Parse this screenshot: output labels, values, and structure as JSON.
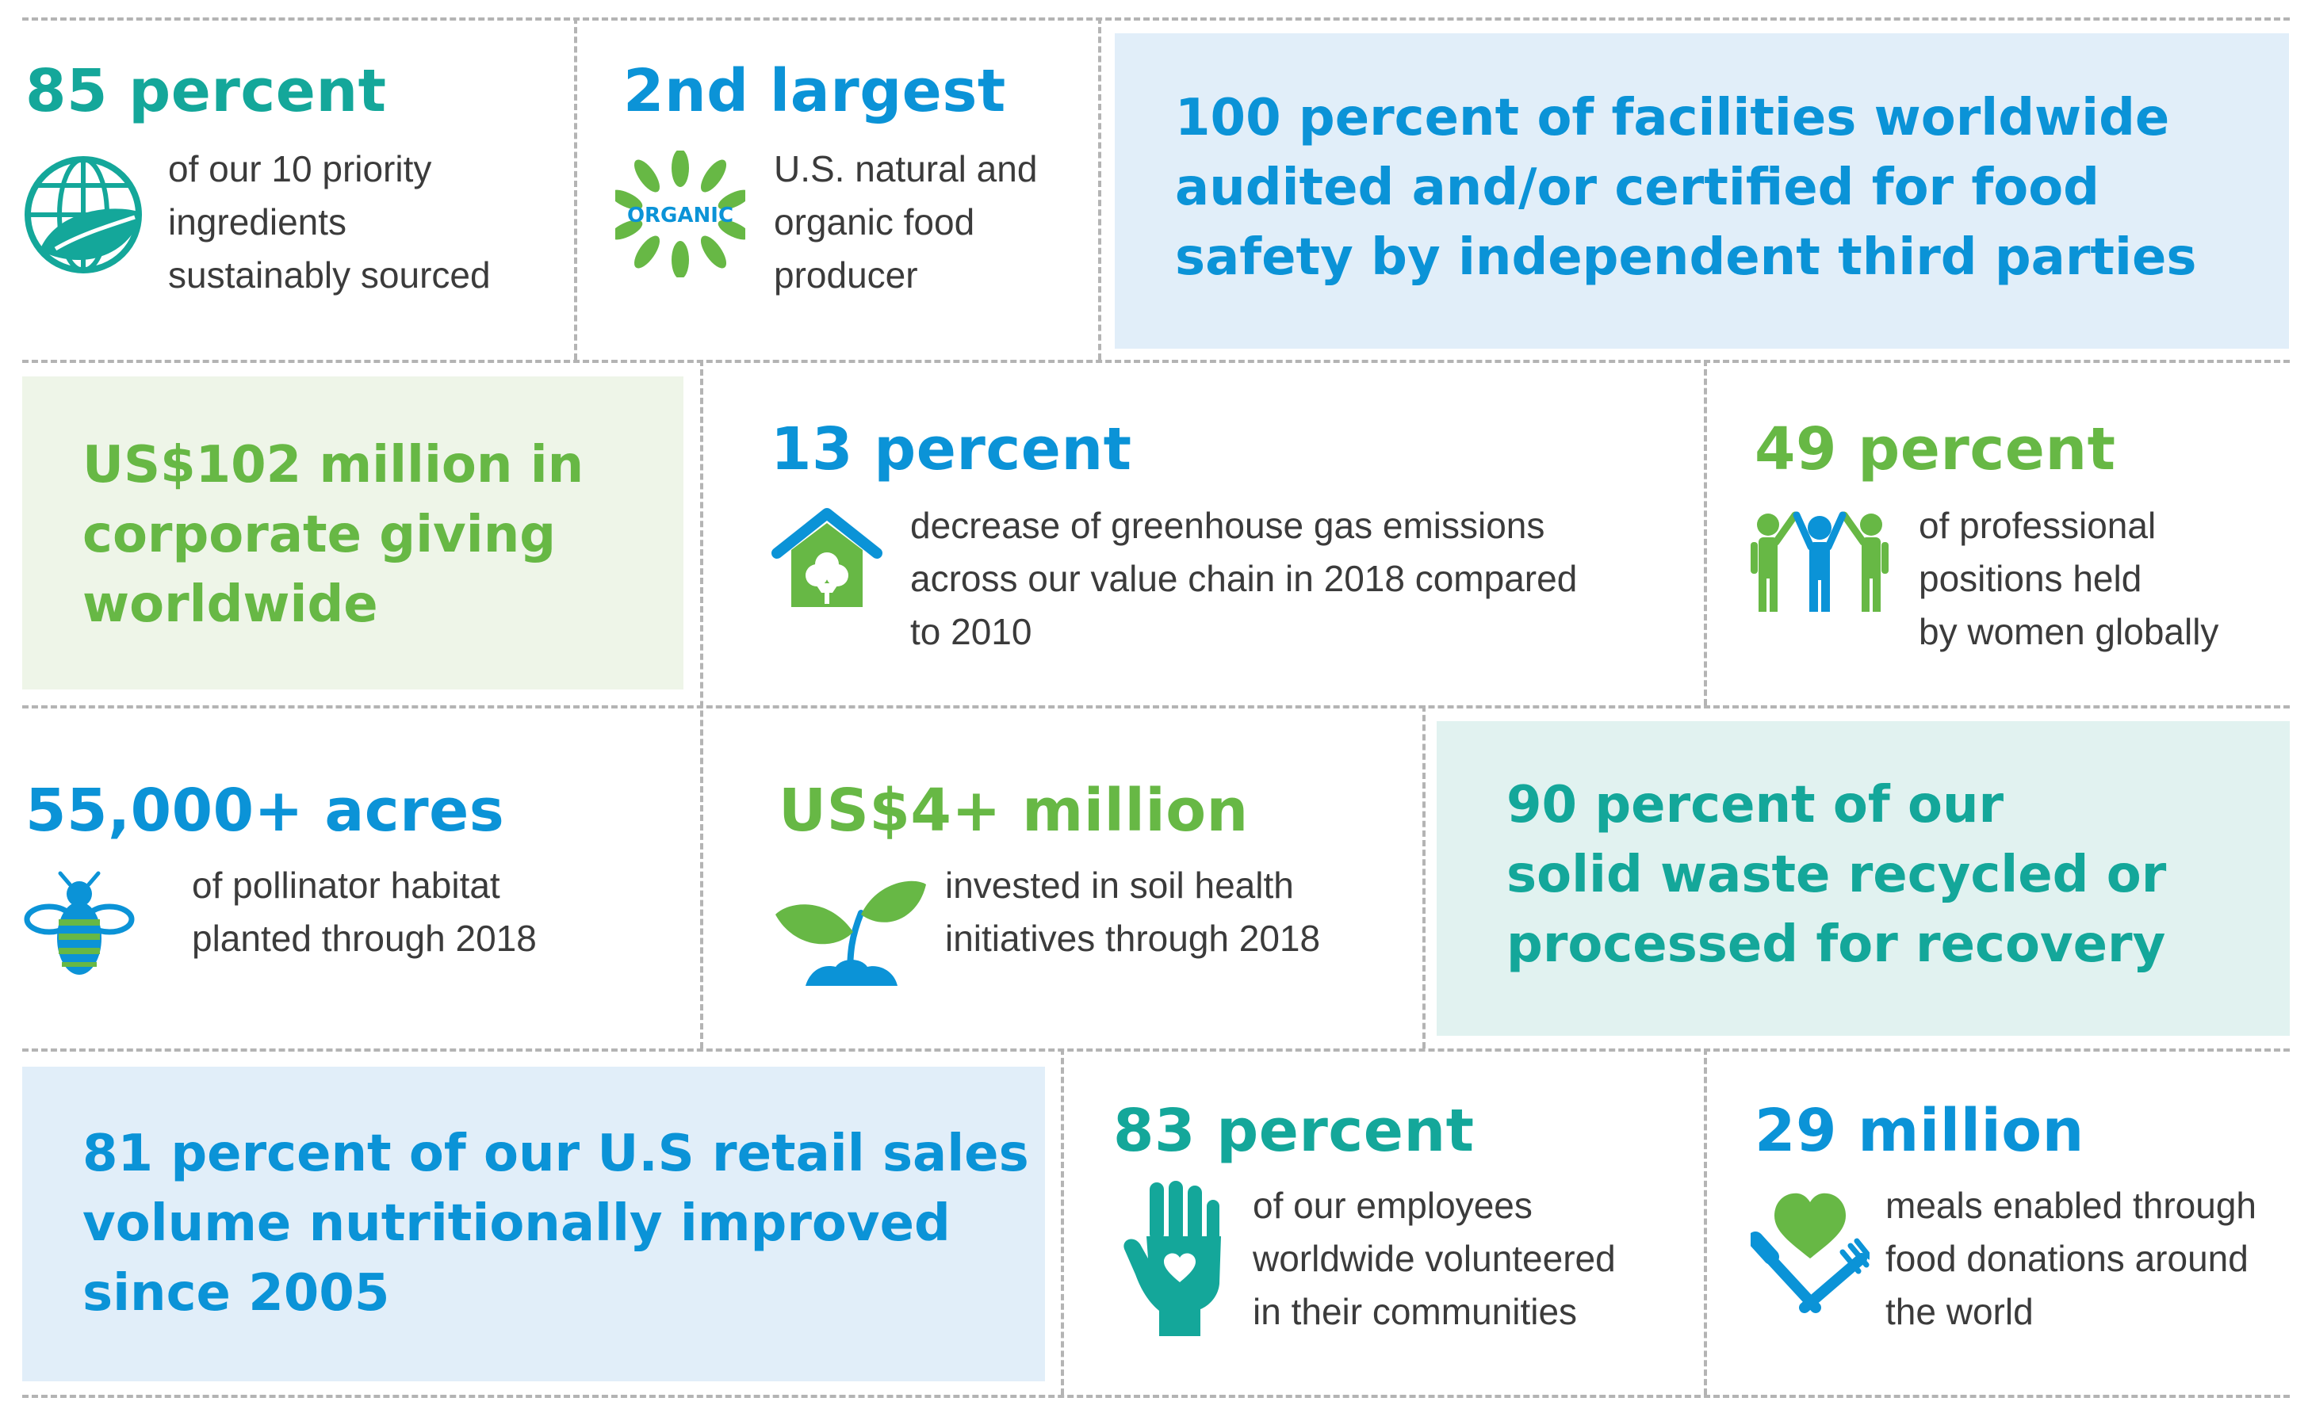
{
  "colors": {
    "teal": "#14a79a",
    "blue": "#0b93d7",
    "green": "#67b845",
    "light_blue_box": "#e1eef9",
    "light_green_box": "#eef5e8",
    "light_teal_box": "#e1f2f0",
    "divider": "#b4b4b4"
  },
  "tiles": [
    {
      "stat": "85 percent",
      "lines": [
        "of our 10 priority",
        "ingredients",
        "sustainably sourced"
      ],
      "icon": "globe-leaf-icon"
    },
    {
      "stat": "2nd largest",
      "lines": [
        "U.S. natural and",
        "organic food",
        "producer"
      ],
      "icon": "organic-leaves-icon",
      "icon_text": "ORGANIC"
    },
    {
      "lines": [
        "100 percent of facilities worldwide",
        "audited and/or certified for food",
        "safety by independent third parties"
      ]
    },
    {
      "lines": [
        "US$102 million in",
        "corporate giving",
        "worldwide"
      ]
    },
    {
      "stat": "13 percent",
      "lines": [
        "decrease of greenhouse gas emissions",
        "across our value chain in 2018 compared",
        "to 2010"
      ],
      "icon": "green-house-icon"
    },
    {
      "stat": "49 percent",
      "lines": [
        "of professional",
        "positions held",
        "by women globally"
      ],
      "icon": "people-raising-hands-icon"
    },
    {
      "stat": "55,000+ acres",
      "lines": [
        "of pollinator habitat",
        "planted through 2018"
      ],
      "icon": "bee-icon"
    },
    {
      "stat": "US$4+ million",
      "lines": [
        "invested in soil health",
        "initiatives through 2018"
      ],
      "icon": "seedling-icon"
    },
    {
      "lines": [
        "90 percent of our",
        "solid waste recycled or",
        "processed for recovery"
      ]
    },
    {
      "lines": [
        "81 percent of our U.S retail sales",
        "volume nutritionally improved",
        "since 2005"
      ]
    },
    {
      "stat": "83 percent",
      "lines": [
        "of our employees",
        "worldwide volunteered",
        "in their communities"
      ],
      "icon": "hand-heart-icon"
    },
    {
      "stat": "29 million",
      "lines": [
        "meals enabled through",
        "food donations around",
        "the world"
      ],
      "icon": "heart-fork-knife-icon"
    }
  ]
}
